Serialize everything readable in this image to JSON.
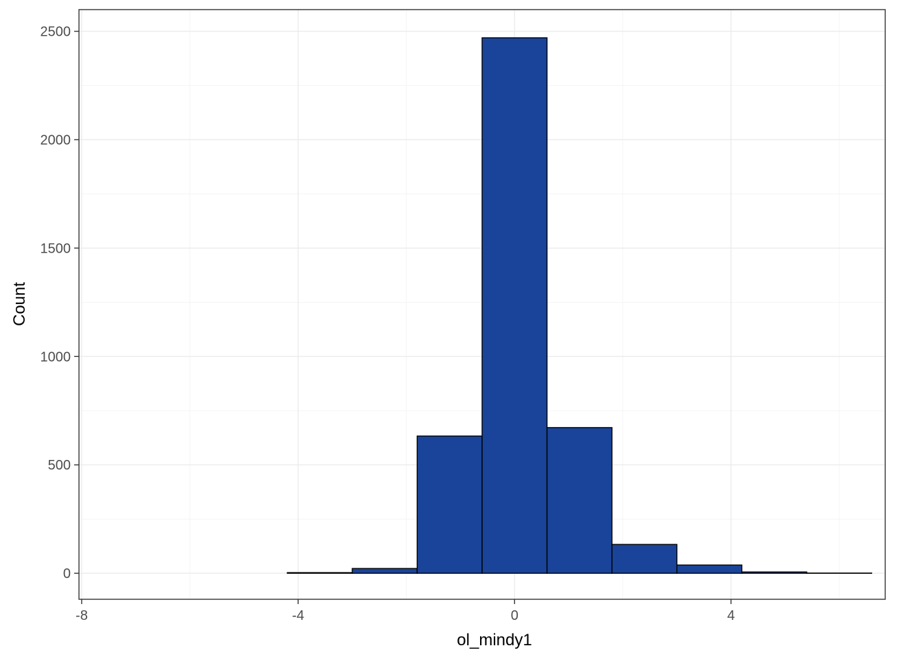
{
  "chart_data": {
    "type": "bar",
    "subtype": "histogram",
    "xlabel": "ol_mindy1",
    "ylabel": "Count",
    "xlim": [
      -8.05,
      6.85
    ],
    "ylim": [
      -120,
      2600
    ],
    "x_ticks": [
      -8,
      -4,
      0,
      4
    ],
    "x_tick_labels": [
      "-8",
      "-4",
      "0",
      "4"
    ],
    "y_ticks": [
      0,
      500,
      1000,
      1500,
      2000,
      2500
    ],
    "y_tick_labels": [
      "0",
      "500",
      "1000",
      "1500",
      "2000",
      "2500"
    ],
    "grid": true,
    "bar_color": "#1a4499",
    "bar_edge_color": "#000000",
    "bins": [
      {
        "x0": -7.8,
        "x1": -6.6,
        "count": 0
      },
      {
        "x0": -6.6,
        "x1": -5.4,
        "count": 0
      },
      {
        "x0": -5.4,
        "x1": -4.2,
        "count": 0
      },
      {
        "x0": -4.2,
        "x1": -3.0,
        "count": 3
      },
      {
        "x0": -3.0,
        "x1": -1.8,
        "count": 22
      },
      {
        "x0": -1.8,
        "x1": -0.6,
        "count": 633
      },
      {
        "x0": -0.6,
        "x1": 0.6,
        "count": 2470
      },
      {
        "x0": 0.6,
        "x1": 1.8,
        "count": 672
      },
      {
        "x0": 1.8,
        "x1": 3.0,
        "count": 133
      },
      {
        "x0": 3.0,
        "x1": 4.2,
        "count": 38
      },
      {
        "x0": 4.2,
        "x1": 5.4,
        "count": 6
      },
      {
        "x0": 5.4,
        "x1": 6.6,
        "count": 1
      }
    ]
  }
}
